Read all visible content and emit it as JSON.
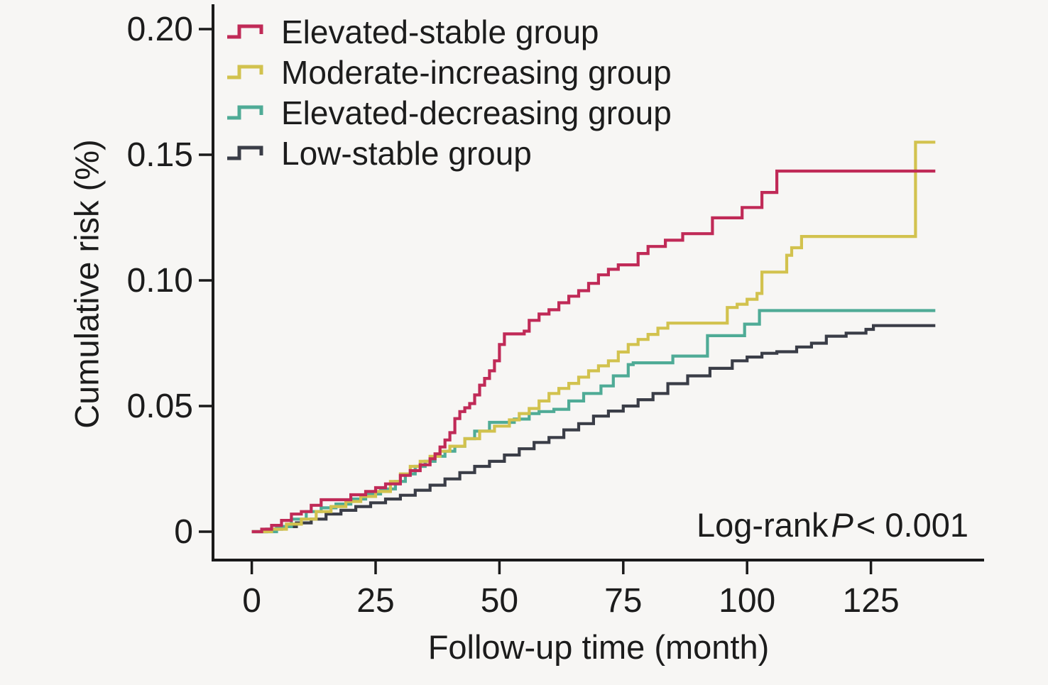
{
  "colors": {
    "background": "#f7f6f4",
    "axis": "#1a1a1a",
    "text": "#1c1c1c"
  },
  "chart_data": {
    "type": "line",
    "subtype": "step-after",
    "title": "",
    "xlabel": "Follow-up time (month)",
    "ylabel": "Cumulative risk (%)",
    "xlim": [
      0,
      140
    ],
    "ylim": [
      0,
      0.2
    ],
    "grid": false,
    "legend_position": "top-left",
    "x_ticks": [
      {
        "value": 0,
        "label": "0"
      },
      {
        "value": 25,
        "label": "25"
      },
      {
        "value": 50,
        "label": "50"
      },
      {
        "value": 75,
        "label": "75"
      },
      {
        "value": 100,
        "label": "100"
      },
      {
        "value": 125,
        "label": "125"
      }
    ],
    "y_ticks": [
      {
        "value": 0,
        "label": "0"
      },
      {
        "value": 0.05,
        "label": "0.05"
      },
      {
        "value": 0.1,
        "label": "0.10"
      },
      {
        "value": 0.15,
        "label": "0.15"
      },
      {
        "value": 0.2,
        "label": "0.20"
      }
    ],
    "annotation": {
      "prefix": "Log-rank",
      "p_symbol": "P",
      "suffix": "< 0.001"
    },
    "series": [
      {
        "name": "Elevated-stable group",
        "color": "#c02a57",
        "final_value": 0.1435,
        "points": [
          [
            0,
            0
          ],
          [
            2,
            0.001
          ],
          [
            4,
            0.0025
          ],
          [
            6,
            0.0045
          ],
          [
            8,
            0.007
          ],
          [
            10,
            0.008
          ],
          [
            12,
            0.0105
          ],
          [
            14,
            0.0127
          ],
          [
            20,
            0.0147
          ],
          [
            23,
            0.016
          ],
          [
            25,
            0.0175
          ],
          [
            27,
            0.019
          ],
          [
            30,
            0.0224
          ],
          [
            32,
            0.0243
          ],
          [
            34,
            0.0266
          ],
          [
            36,
            0.029
          ],
          [
            37,
            0.031
          ],
          [
            38,
            0.0337
          ],
          [
            39,
            0.0365
          ],
          [
            40,
            0.0394
          ],
          [
            41,
            0.045
          ],
          [
            42,
            0.0478
          ],
          [
            43,
            0.0493
          ],
          [
            44,
            0.051
          ],
          [
            45,
            0.0544
          ],
          [
            46,
            0.0583
          ],
          [
            47,
            0.061
          ],
          [
            48,
            0.064
          ],
          [
            49,
            0.068
          ],
          [
            50,
            0.0745
          ],
          [
            51,
            0.0787
          ],
          [
            55,
            0.0798
          ],
          [
            56,
            0.0841
          ],
          [
            58,
            0.0866
          ],
          [
            60,
            0.0883
          ],
          [
            62,
            0.0911
          ],
          [
            64,
            0.0937
          ],
          [
            66,
            0.0959
          ],
          [
            68,
            0.0988
          ],
          [
            70,
            0.1022
          ],
          [
            72,
            0.1044
          ],
          [
            74,
            0.1062
          ],
          [
            78,
            0.1107
          ],
          [
            80,
            0.1135
          ],
          [
            83.5,
            0.116
          ],
          [
            87,
            0.1186
          ],
          [
            93,
            0.1249
          ],
          [
            99,
            0.129
          ],
          [
            103,
            0.135
          ],
          [
            106,
            0.1435
          ],
          [
            138,
            0.1435
          ]
        ]
      },
      {
        "name": "Moderate-increasing group",
        "color": "#d2c24e",
        "final_value": 0.155,
        "points": [
          [
            0,
            0
          ],
          [
            4,
            0.001
          ],
          [
            7,
            0.003
          ],
          [
            10,
            0.005
          ],
          [
            13,
            0.008
          ],
          [
            16,
            0.01
          ],
          [
            19,
            0.012
          ],
          [
            22,
            0.014
          ],
          [
            25,
            0.016
          ],
          [
            28,
            0.02
          ],
          [
            30,
            0.023
          ],
          [
            32,
            0.026
          ],
          [
            34,
            0.028
          ],
          [
            36,
            0.03
          ],
          [
            38,
            0.032
          ],
          [
            40,
            0.034
          ],
          [
            43,
            0.037
          ],
          [
            46,
            0.04
          ],
          [
            49,
            0.042
          ],
          [
            52,
            0.0445
          ],
          [
            54,
            0.047
          ],
          [
            56,
            0.049
          ],
          [
            58,
            0.052
          ],
          [
            60,
            0.055
          ],
          [
            62,
            0.057
          ],
          [
            64,
            0.059
          ],
          [
            66,
            0.0615
          ],
          [
            68,
            0.064
          ],
          [
            70,
            0.066
          ],
          [
            72,
            0.068
          ],
          [
            74,
            0.0715
          ],
          [
            76,
            0.0745
          ],
          [
            78,
            0.0765
          ],
          [
            80,
            0.0785
          ],
          [
            82,
            0.081
          ],
          [
            84,
            0.083
          ],
          [
            96,
            0.0892
          ],
          [
            98,
            0.0905
          ],
          [
            100,
            0.0925
          ],
          [
            102,
            0.0948
          ],
          [
            103,
            0.1033
          ],
          [
            108,
            0.11
          ],
          [
            109,
            0.113
          ],
          [
            111,
            0.1175
          ],
          [
            134,
            0.155
          ],
          [
            138,
            0.155
          ]
        ]
      },
      {
        "name": "Elevated-decreasing group",
        "color": "#4fab96",
        "final_value": 0.088,
        "points": [
          [
            0,
            0
          ],
          [
            5,
            0.002
          ],
          [
            8,
            0.005
          ],
          [
            11,
            0.008
          ],
          [
            14,
            0.0095
          ],
          [
            17,
            0.011
          ],
          [
            20,
            0.013
          ],
          [
            23,
            0.015
          ],
          [
            26,
            0.017
          ],
          [
            29,
            0.02
          ],
          [
            31,
            0.023
          ],
          [
            33,
            0.026
          ],
          [
            35,
            0.028
          ],
          [
            37,
            0.03
          ],
          [
            39,
            0.032
          ],
          [
            41,
            0.034
          ],
          [
            43,
            0.037
          ],
          [
            45,
            0.04
          ],
          [
            48,
            0.0435
          ],
          [
            53,
            0.0448
          ],
          [
            56,
            0.047
          ],
          [
            58,
            0.0478
          ],
          [
            61,
            0.0487
          ],
          [
            64,
            0.052
          ],
          [
            67,
            0.055
          ],
          [
            70.5,
            0.058
          ],
          [
            73,
            0.062
          ],
          [
            76,
            0.0665
          ],
          [
            77,
            0.0672
          ],
          [
            85,
            0.0699
          ],
          [
            92,
            0.078
          ],
          [
            99.5,
            0.0826
          ],
          [
            102.5,
            0.088
          ],
          [
            138,
            0.088
          ]
        ]
      },
      {
        "name": "Low-stable group",
        "color": "#3a3d47",
        "final_value": 0.082,
        "points": [
          [
            0,
            0
          ],
          [
            3,
            0.001
          ],
          [
            6,
            0.002
          ],
          [
            9,
            0.0035
          ],
          [
            12,
            0.005
          ],
          [
            15,
            0.007
          ],
          [
            18,
            0.0085
          ],
          [
            21,
            0.01
          ],
          [
            24,
            0.0115
          ],
          [
            27,
            0.013
          ],
          [
            30,
            0.0145
          ],
          [
            33,
            0.0165
          ],
          [
            36,
            0.0185
          ],
          [
            39,
            0.021
          ],
          [
            42,
            0.0235
          ],
          [
            45,
            0.026
          ],
          [
            48,
            0.028
          ],
          [
            51,
            0.0305
          ],
          [
            54,
            0.033
          ],
          [
            57,
            0.0355
          ],
          [
            60,
            0.0375
          ],
          [
            63,
            0.0405
          ],
          [
            66,
            0.043
          ],
          [
            69,
            0.046
          ],
          [
            72,
            0.048
          ],
          [
            75,
            0.05
          ],
          [
            78,
            0.0525
          ],
          [
            81,
            0.055
          ],
          [
            84,
            0.0589
          ],
          [
            88,
            0.062
          ],
          [
            92.5,
            0.065
          ],
          [
            97,
            0.068
          ],
          [
            100,
            0.0695
          ],
          [
            103,
            0.071
          ],
          [
            106,
            0.0716
          ],
          [
            110,
            0.0735
          ],
          [
            113,
            0.075
          ],
          [
            116,
            0.0778
          ],
          [
            120,
            0.079
          ],
          [
            124,
            0.0805
          ],
          [
            125.5,
            0.082
          ],
          [
            138,
            0.082
          ]
        ]
      }
    ]
  }
}
